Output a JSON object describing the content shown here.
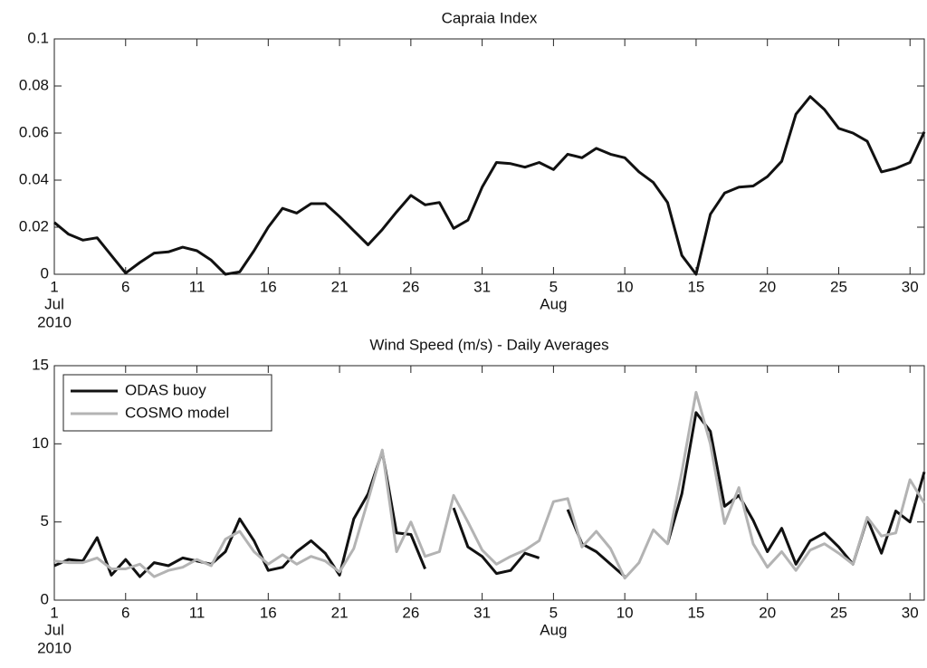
{
  "chart_data": [
    {
      "type": "line",
      "title": "Capraia Index",
      "x": [
        1,
        2,
        3,
        4,
        5,
        6,
        7,
        8,
        9,
        10,
        11,
        12,
        13,
        14,
        15,
        16,
        17,
        18,
        19,
        20,
        21,
        22,
        23,
        24,
        25,
        26,
        27,
        28,
        29,
        30,
        31,
        32,
        33,
        34,
        35,
        36,
        37,
        38,
        39,
        40,
        41,
        42,
        43,
        44,
        45,
        46,
        47,
        48,
        49,
        50,
        51,
        52,
        53,
        54,
        55,
        56,
        57,
        58,
        59,
        60,
        61,
        62
      ],
      "series": [
        {
          "name": "Capraia Index",
          "color": "#111111",
          "values": [
            0.022,
            0.017,
            0.0145,
            0.0155,
            0.008,
            0.0005,
            0.005,
            0.009,
            0.0095,
            0.0115,
            0.01,
            0.006,
            0.0,
            0.001,
            0.01,
            0.02,
            0.028,
            0.026,
            0.03,
            0.03,
            0.0245,
            0.0185,
            0.0125,
            0.019,
            0.0265,
            0.0335,
            0.0295,
            0.0305,
            0.0195,
            0.023,
            0.037,
            0.0475,
            0.047,
            0.0455,
            0.0475,
            0.0445,
            0.051,
            0.0495,
            0.0535,
            0.051,
            0.0495,
            0.0435,
            0.039,
            0.0305,
            0.008,
            0.0,
            0.0255,
            0.0345,
            0.037,
            0.0375,
            0.0415,
            0.048,
            0.068,
            0.0755,
            0.07,
            0.062,
            0.06,
            0.0565,
            0.0435,
            0.045,
            0.0475,
            0.0605
          ]
        }
      ],
      "xlim": [
        1,
        62
      ],
      "xticks": [
        1,
        6,
        11,
        16,
        21,
        26,
        31,
        {
          "value": 36,
          "label": "5"
        },
        {
          "value": 41,
          "label": "10"
        },
        {
          "value": 46,
          "label": "15"
        },
        {
          "value": 51,
          "label": "20"
        },
        {
          "value": 56,
          "label": "25"
        },
        {
          "value": 61,
          "label": "30"
        }
      ],
      "x_month_labels": [
        {
          "value": 1,
          "label": "Jul"
        },
        {
          "value": 36,
          "label": "Aug"
        }
      ],
      "x_year_label": "2010",
      "ylim": [
        0,
        0.1
      ],
      "yticks": [
        0,
        0.02,
        0.04,
        0.06,
        0.08,
        0.1
      ],
      "grid": false,
      "legend": null
    },
    {
      "type": "line",
      "title": "Wind Speed (m/s) - Daily Averages",
      "x": [
        1,
        2,
        3,
        4,
        5,
        6,
        7,
        8,
        9,
        10,
        11,
        12,
        13,
        14,
        15,
        16,
        17,
        18,
        19,
        20,
        21,
        22,
        23,
        24,
        25,
        26,
        27,
        28,
        29,
        30,
        31,
        32,
        33,
        34,
        35,
        36,
        37,
        38,
        39,
        40,
        41,
        42,
        43,
        44,
        45,
        46,
        47,
        48,
        49,
        50,
        51,
        52,
        53,
        54,
        55,
        56,
        57,
        58,
        59,
        60,
        61,
        62
      ],
      "series": [
        {
          "name": "ODAS buoy",
          "color": "#111111",
          "values": [
            2.2,
            2.6,
            2.5,
            4.0,
            1.6,
            2.6,
            1.5,
            2.4,
            2.2,
            2.7,
            2.5,
            2.3,
            3.1,
            5.2,
            3.8,
            1.9,
            2.1,
            3.1,
            3.8,
            3.0,
            1.6,
            5.2,
            6.8,
            9.5,
            4.3,
            4.2,
            2.0,
            null,
            5.9,
            3.4,
            2.8,
            1.7,
            1.9,
            3.0,
            2.7,
            null,
            5.8,
            3.6,
            3.1,
            2.3,
            1.5,
            null,
            null,
            3.6,
            6.8,
            12.0,
            10.8,
            6.0,
            6.7,
            5.1,
            3.1,
            4.6,
            2.3,
            3.8,
            4.3,
            3.4,
            2.3,
            5.2,
            3.0,
            5.7,
            5.0,
            8.2
          ]
        },
        {
          "name": "COSMO model",
          "color": "#b3b3b3",
          "values": [
            2.5,
            2.4,
            2.4,
            2.7,
            2.0,
            2.0,
            2.3,
            1.5,
            1.9,
            2.1,
            2.6,
            2.2,
            3.9,
            4.4,
            3.1,
            2.3,
            2.9,
            2.3,
            2.8,
            2.5,
            1.8,
            3.3,
            6.4,
            9.6,
            3.1,
            5.0,
            2.8,
            3.1,
            6.7,
            5.0,
            3.2,
            2.3,
            2.8,
            3.2,
            3.8,
            6.3,
            6.5,
            3.4,
            4.4,
            3.3,
            1.4,
            2.4,
            4.5,
            3.6,
            8.2,
            13.3,
            10.0,
            4.9,
            7.2,
            3.6,
            2.1,
            3.1,
            1.9,
            3.2,
            3.6,
            3.0,
            2.3,
            5.3,
            4.1,
            4.3,
            7.7,
            6.2
          ]
        }
      ],
      "xlim": [
        1,
        62
      ],
      "xticks": [
        1,
        6,
        11,
        16,
        21,
        26,
        31,
        {
          "value": 36,
          "label": "5"
        },
        {
          "value": 41,
          "label": "10"
        },
        {
          "value": 46,
          "label": "15"
        },
        {
          "value": 51,
          "label": "20"
        },
        {
          "value": 56,
          "label": "25"
        },
        {
          "value": 61,
          "label": "30"
        }
      ],
      "x_month_labels": [
        {
          "value": 1,
          "label": "Jul"
        },
        {
          "value": 36,
          "label": "Aug"
        }
      ],
      "x_year_label": "2010",
      "ylim": [
        0,
        15
      ],
      "yticks": [
        0,
        5,
        10,
        15
      ],
      "grid": false,
      "legend": "upper left"
    }
  ]
}
